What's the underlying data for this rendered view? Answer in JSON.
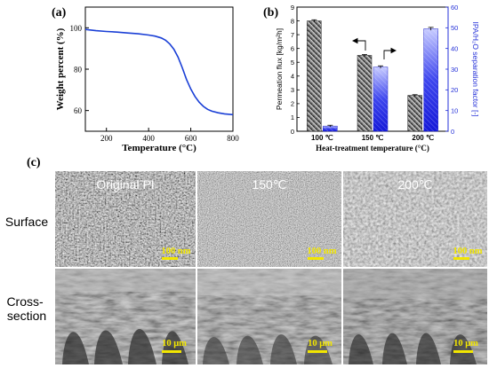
{
  "panel_a": {
    "tag": "(a)",
    "chart_data": {
      "type": "line",
      "xlabel": "Temperature (°C)",
      "ylabel": "Weight percent (%)",
      "xlim": [
        100,
        800
      ],
      "ylim": [
        50,
        110
      ],
      "x_ticks": [
        200,
        400,
        600,
        800
      ],
      "y_ticks": [
        60,
        80,
        100
      ],
      "line_color": "#1a3fd6",
      "series": [
        {
          "x": [
            100,
            150,
            200,
            250,
            300,
            350,
            400,
            430,
            460,
            480,
            500,
            520,
            540,
            560,
            580,
            600,
            620,
            640,
            660,
            680,
            700,
            730,
            760,
            800
          ],
          "y": [
            99.2,
            98.6,
            98.2,
            97.9,
            97.5,
            97.1,
            96.5,
            96.0,
            95.1,
            94.0,
            92.2,
            89.6,
            85.8,
            80.6,
            75.0,
            70.4,
            66.8,
            64.0,
            62.0,
            60.6,
            59.7,
            58.9,
            58.4,
            58.0
          ]
        }
      ]
    }
  },
  "panel_b": {
    "tag": "(b)",
    "chart_data": {
      "type": "bar",
      "categories": [
        "100 ℃",
        "150 ℃",
        "200 ℃"
      ],
      "xlabel": "Heat-treatment temperature (°C)",
      "ylabel_left": "Permeation flux [kg/m²h]",
      "ylabel_right": "IPA/H₂O separation factor [-]",
      "ylim_left": [
        0,
        9
      ],
      "ylim_right": [
        0,
        60
      ],
      "yticks_left": [
        0,
        1,
        2,
        3,
        4,
        5,
        6,
        7,
        8,
        9
      ],
      "yticks_right": [
        0,
        10,
        20,
        30,
        40,
        50,
        60
      ],
      "right_axis_color": "#2430d8",
      "series": [
        {
          "axis": "left",
          "values": [
            8.0,
            5.5,
            2.6
          ],
          "errors": [
            0.08,
            0.06,
            0.05
          ]
        },
        {
          "axis": "right",
          "values": [
            2.5,
            31.0,
            49.5
          ],
          "errors": [
            0.4,
            0.6,
            0.7
          ]
        }
      ]
    }
  },
  "panel_c": {
    "tag": "(c)",
    "columns": [
      "Original PI",
      "150℃",
      "200℃"
    ],
    "rows": [
      "Surface",
      "Cross-\nsection"
    ],
    "surface_scale": "100 nm",
    "cross_scale": "10 μm",
    "scale_color": "#f2e600"
  }
}
